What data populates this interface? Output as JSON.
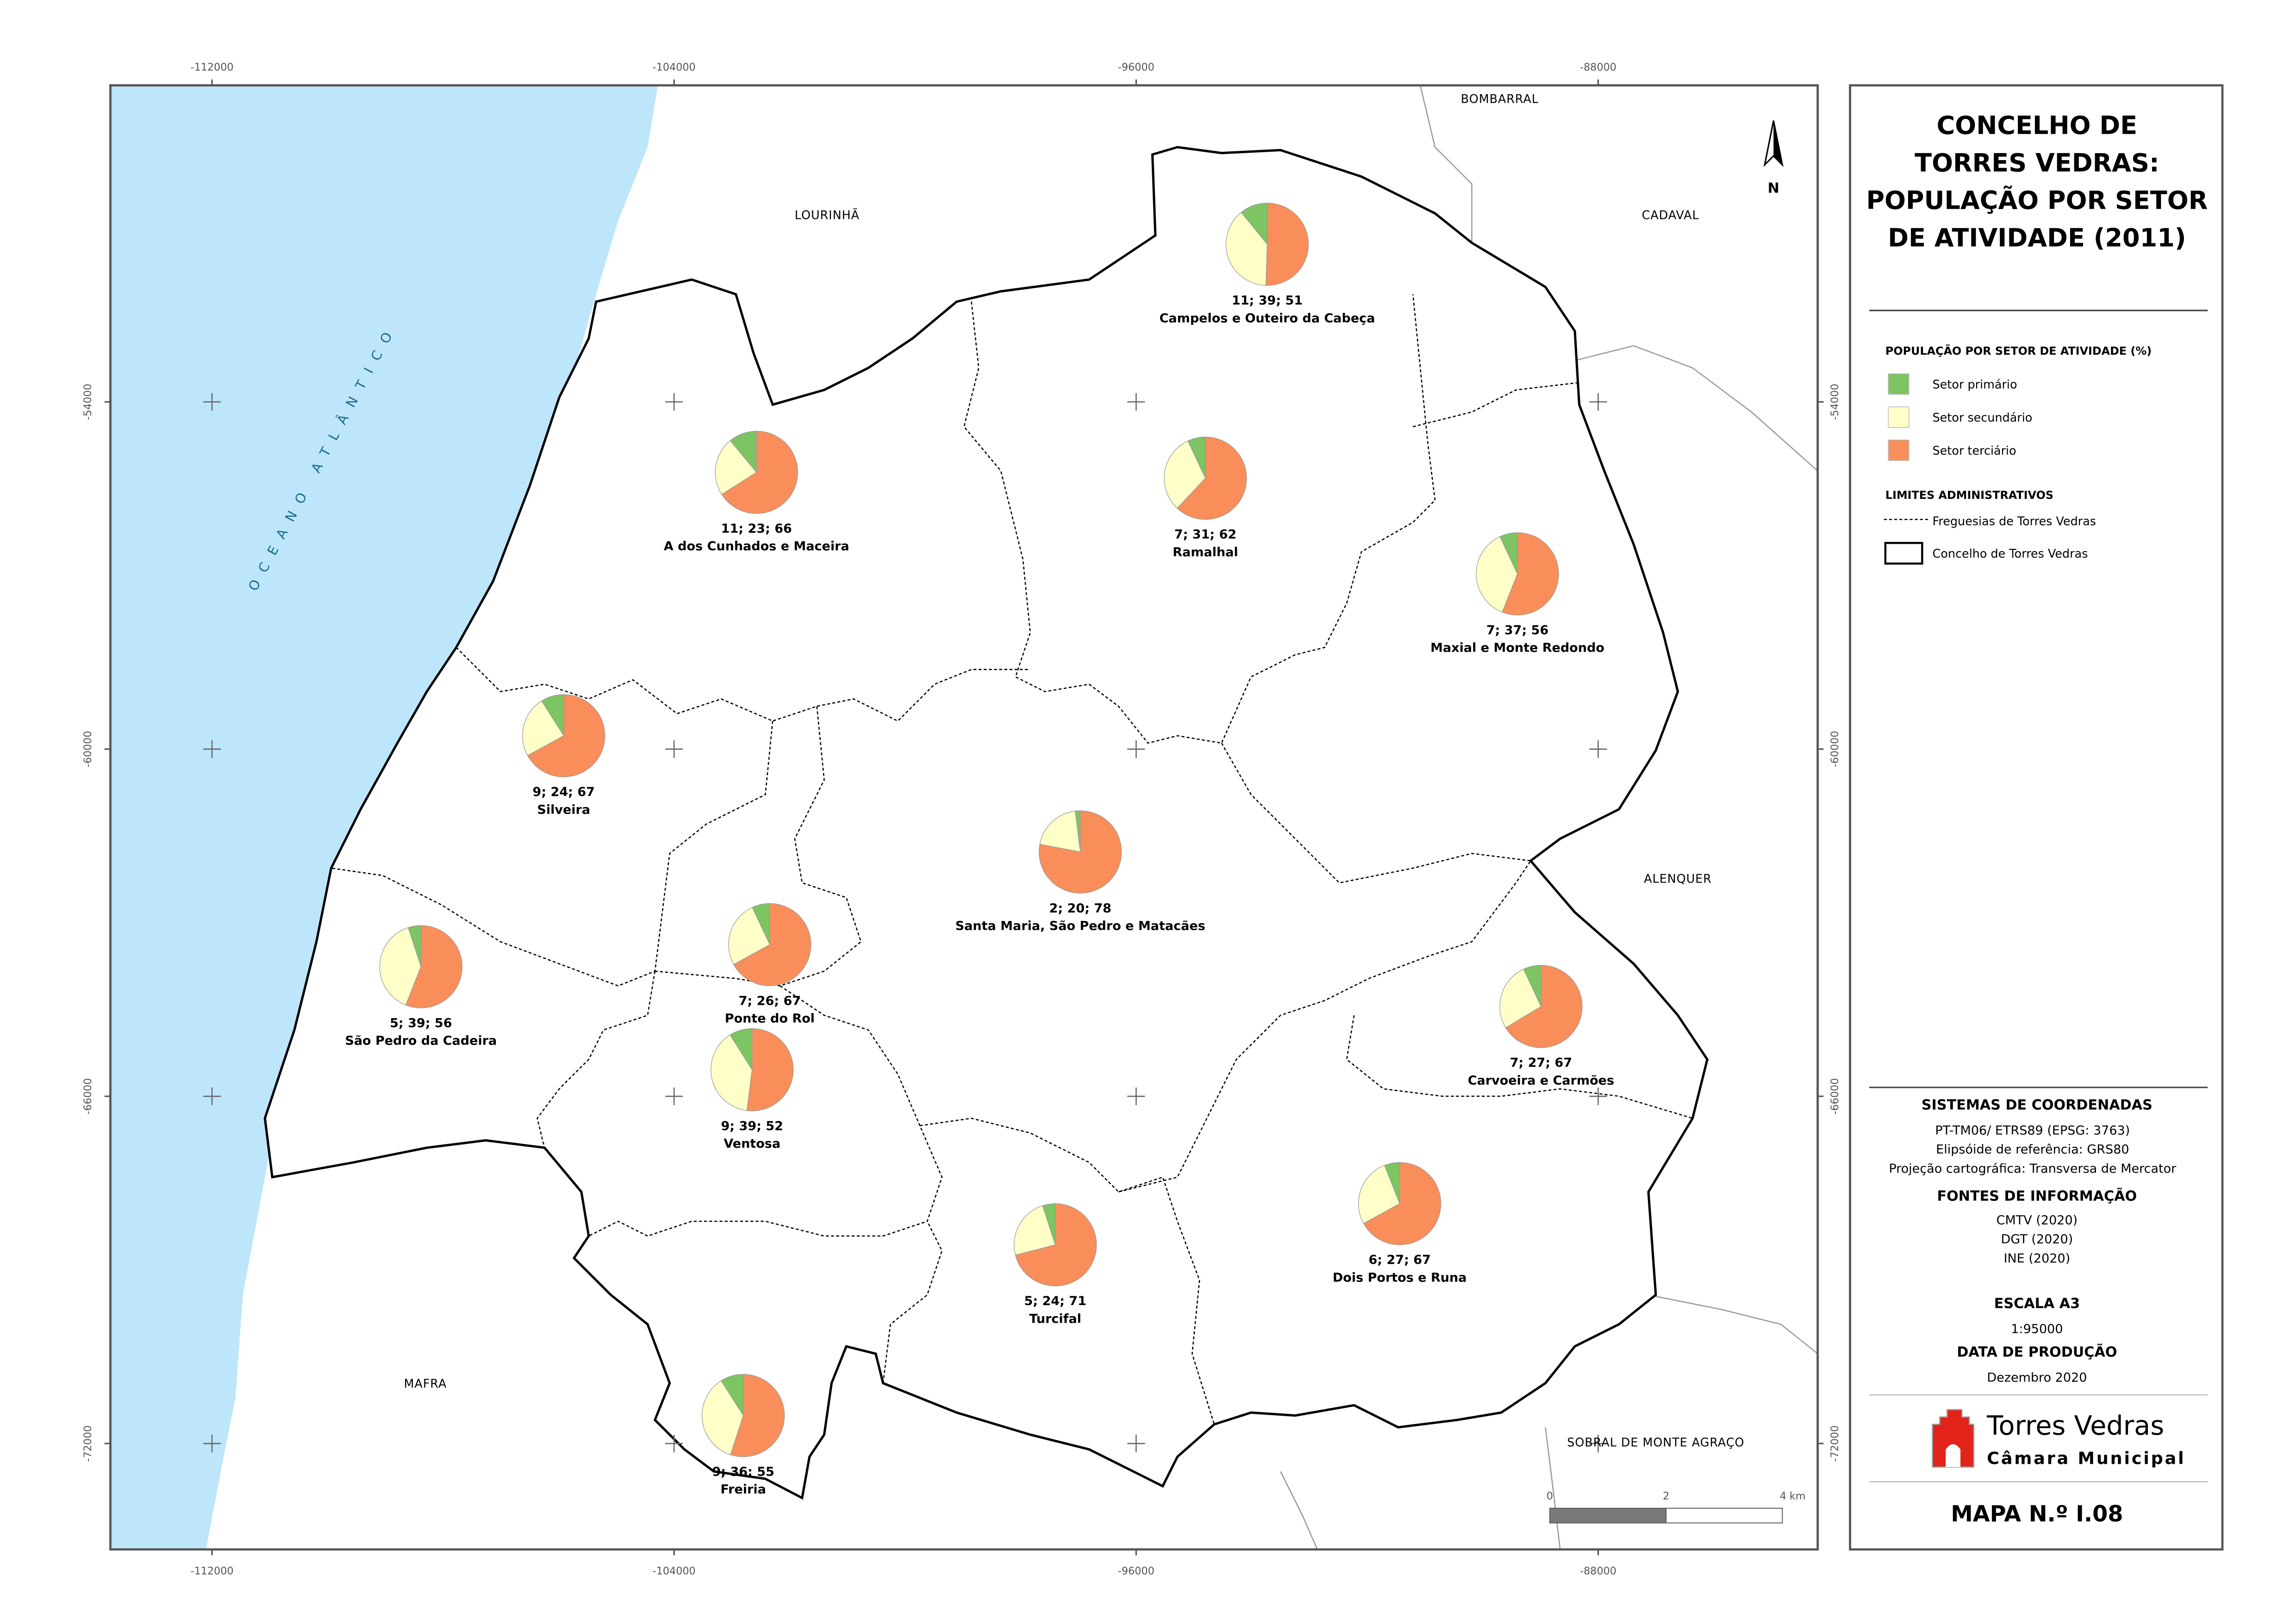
{
  "title_lines": [
    "CONCELHO DE",
    "TORRES VEDRAS:",
    "POPULAÇÃO POR SETOR",
    "DE ATIVIDADE (2011)"
  ],
  "legend": {
    "title": "POPULAÇÃO POR SETOR DE ATIVIDADE (%)",
    "items": [
      {
        "name": "Setor primário",
        "color": "#7dc462"
      },
      {
        "name": "Setor secundário",
        "color": "#ffffc8"
      },
      {
        "name": "Setor terciário",
        "color": "#f98e5a"
      }
    ]
  },
  "limits": {
    "title": "LIMITES ADMINISTRATIVOS",
    "items": [
      "Freguesias de Torres Vedras",
      "Concelho de Torres Vedras"
    ]
  },
  "coordinates": {
    "title": "SISTEMAS DE COORDENADAS",
    "lines": [
      "PT-TM06/ ETRS89 (EPSG: 3763)",
      "Elipsóide de referência: GRS80",
      "Projeção cartográfica: Transversa de Mercator"
    ]
  },
  "sources": {
    "title": "FONTES DE INFORMAÇÃO",
    "lines": [
      "CMTV (2020)",
      "DGT (2020)",
      "INE (2020)"
    ]
  },
  "scale": {
    "title": "ESCALA A3",
    "value": "1:95000",
    "bar_labels": [
      "0",
      "2",
      "4 km"
    ]
  },
  "production": {
    "title": "DATA DE PRODUÇÃO",
    "value": "Dezembro 2020"
  },
  "logo": {
    "name": "Torres Vedras",
    "subtitle": "Câmara Municipal"
  },
  "map_number": "MAPA N.º I.08",
  "north": "N",
  "ocean": "OCEANO ATLÂNTICO",
  "neighbors": [
    "LOURINHÃ",
    "BOMBARRAL",
    "CADAVAL",
    "ALENQUER",
    "MAFRA",
    "SOBRAL DE MONTE AGRAÇO"
  ],
  "grid": {
    "xlim": [
      -113760,
      -84200
    ],
    "ylim": [
      -73830,
      -48530
    ],
    "xticks": [
      -112000,
      -104000,
      -96000,
      -88000
    ],
    "yticks": [
      -54000,
      -60000,
      -66000,
      -72000
    ]
  },
  "freguesias": [
    {
      "name": "Campelos e Outeiro da Cabeça",
      "values": [
        11,
        39,
        51
      ],
      "value_label": "11; 39; 51"
    },
    {
      "name": "A dos Cunhados e Maceira",
      "values": [
        11,
        23,
        66
      ],
      "value_label": "11; 23; 66"
    },
    {
      "name": "Ramalhal",
      "values": [
        7,
        31,
        62
      ],
      "value_label": "7; 31; 62"
    },
    {
      "name": "Maxial e Monte Redondo",
      "values": [
        7,
        37,
        56
      ],
      "value_label": "7; 37; 56"
    },
    {
      "name": "Silveira",
      "values": [
        9,
        24,
        67
      ],
      "value_label": "9; 24; 67"
    },
    {
      "name": "Santa Maria, São Pedro e Matacães",
      "values": [
        2,
        20,
        78
      ],
      "value_label": "2; 20; 78"
    },
    {
      "name": "Ponte do Rol",
      "values": [
        7,
        26,
        67
      ],
      "value_label": "7; 26; 67"
    },
    {
      "name": "São Pedro da Cadeira",
      "values": [
        5,
        39,
        56
      ],
      "value_label": "5; 39; 56"
    },
    {
      "name": "Carvoeira e Carmões",
      "values": [
        7,
        27,
        67
      ],
      "value_label": "7; 27; 67"
    },
    {
      "name": "Ventosa",
      "values": [
        9,
        39,
        52
      ],
      "value_label": "9; 39; 52"
    },
    {
      "name": "Dois Portos e Runa",
      "values": [
        6,
        27,
        67
      ],
      "value_label": "6; 27; 67"
    },
    {
      "name": "Turcifal",
      "values": [
        5,
        24,
        71
      ],
      "value_label": "5; 24; 71"
    },
    {
      "name": "Freiria",
      "values": [
        9,
        36,
        55
      ],
      "value_label": "9; 36; 55"
    }
  ]
}
